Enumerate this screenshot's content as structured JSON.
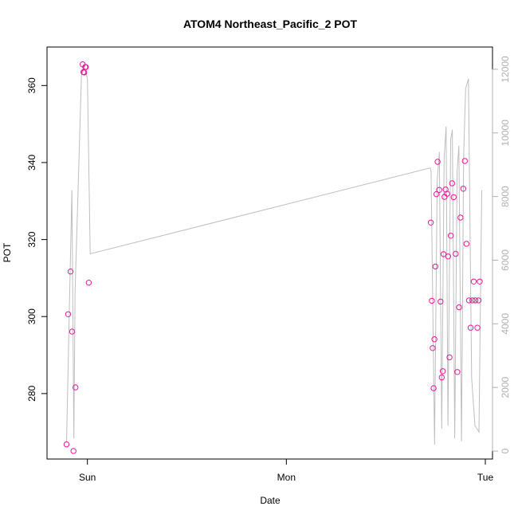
{
  "chart_data": {
    "type": "scatter",
    "title": "ATOM4 Northeast_Pacific_2 POT",
    "xlabel": "Date",
    "ylabel": "POT",
    "x_ticks": [
      {
        "label": "Sun",
        "value": 0
      },
      {
        "label": "Mon",
        "value": 1
      },
      {
        "label": "Tue",
        "value": 2
      }
    ],
    "xlim": [
      -0.203,
      2.036
    ],
    "ylim_left": [
      263,
      370
    ],
    "y_ticks_left": [
      280,
      300,
      320,
      340,
      360
    ],
    "ylim_right": [
      -250,
      12700
    ],
    "y_ticks_right": [
      0,
      2000,
      4000,
      6000,
      8000,
      10000,
      12000
    ],
    "grid": false,
    "legend": "none",
    "colors": {
      "points": "#e6199a",
      "line": "#bebebe",
      "right_axis": "#b0b0b0",
      "axis": "#000000"
    },
    "series": [
      {
        "axis": "left",
        "style": "points",
        "x": [
          -0.105,
          -0.097,
          -0.085,
          -0.077,
          -0.07,
          -0.06,
          -0.024,
          -0.02,
          -0.016,
          -0.011,
          -0.008,
          0.007,
          1.726,
          1.731,
          1.735,
          1.74,
          1.744,
          1.749,
          1.754,
          1.76,
          1.768,
          1.775,
          1.781,
          1.786,
          1.79,
          1.795,
          1.8,
          1.808,
          1.813,
          1.82,
          1.826,
          1.833,
          1.841,
          1.851,
          1.859,
          1.868,
          1.875,
          1.889,
          1.897,
          1.905,
          1.918,
          1.926,
          1.935,
          1.942,
          1.95,
          1.96,
          1.966,
          1.972
        ],
        "y": [
          266.8,
          300.6,
          311.7,
          296.1,
          265.1,
          281.6,
          365.5,
          363.5,
          363.4,
          364.8,
          364.8,
          308.8,
          324.4,
          304.1,
          291.8,
          281.4,
          294.1,
          313.0,
          331.8,
          340.2,
          332.9,
          303.9,
          284.2,
          285.8,
          316.2,
          331.1,
          333.0,
          331.9,
          315.6,
          289.4,
          321.0,
          334.6,
          331.0,
          316.3,
          285.6,
          302.4,
          325.7,
          333.2,
          340.4,
          318.9,
          304.2,
          297.1,
          304.2,
          309.1,
          304.2,
          297.1,
          304.2,
          309.1
        ]
      },
      {
        "axis": "right",
        "style": "line",
        "x": [
          -0.105,
          -0.078,
          -0.068,
          -0.062,
          -0.03,
          -0.016,
          0.0,
          0.014,
          1.723,
          1.727,
          1.745,
          1.758,
          1.769,
          1.781,
          1.793,
          1.803,
          1.812,
          1.826,
          1.834,
          1.846,
          1.858,
          1.867,
          1.88,
          1.891,
          1.901,
          1.915,
          1.931,
          1.948,
          1.968,
          1.982
        ],
        "y": [
          300,
          8200,
          400,
          5000,
          11800,
          12100,
          11700,
          6200,
          8900,
          8800,
          200,
          8500,
          9400,
          700,
          9200,
          10200,
          800,
          9800,
          10100,
          400,
          8800,
          9600,
          300,
          9300,
          11400,
          11700,
          2300,
          800,
          600,
          8200
        ]
      }
    ]
  }
}
